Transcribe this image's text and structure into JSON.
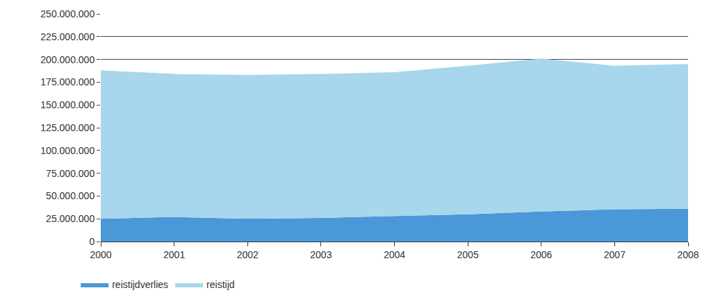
{
  "chart_data": {
    "type": "area",
    "stacked": true,
    "grid": true,
    "legend": "bottom left",
    "x": [
      2000,
      2001,
      2002,
      2003,
      2004,
      2005,
      2006,
      2007,
      2008
    ],
    "xlim": [
      2000,
      2008
    ],
    "xticks": [
      2000,
      2001,
      2002,
      2003,
      2004,
      2005,
      2006,
      2007,
      2008
    ],
    "ylim": [
      0,
      250000000
    ],
    "yticks": [
      0,
      {
        "value": 25000000,
        "label": "25.000.000"
      },
      {
        "value": 50000000,
        "label": "50.000.000"
      },
      {
        "value": 75000000,
        "label": "75.000.000"
      },
      {
        "value": 100000000,
        "label": "100.000.000"
      },
      {
        "value": 125000000,
        "label": "125.000.000"
      },
      {
        "value": 150000000,
        "label": "150.000.000"
      },
      {
        "value": 175000000,
        "label": "175.000.000"
      },
      {
        "value": 200000000,
        "label": "200.000.000"
      },
      {
        "value": 225000000,
        "label": "225.000.000"
      },
      {
        "value": 250000000,
        "label": "250.000.000"
      }
    ],
    "series": [
      {
        "name": "reistijdverlies",
        "color": "#4a98d8",
        "values": [
          25000000,
          27000000,
          25000000,
          26000000,
          28000000,
          30000000,
          33000000,
          35500000,
          36000000
        ]
      },
      {
        "name": "reistijd",
        "color": "#a8d6ec",
        "values": [
          163000000,
          157000000,
          158000000,
          158000000,
          158000000,
          163000000,
          168000000,
          157500000,
          159000000
        ]
      }
    ]
  }
}
